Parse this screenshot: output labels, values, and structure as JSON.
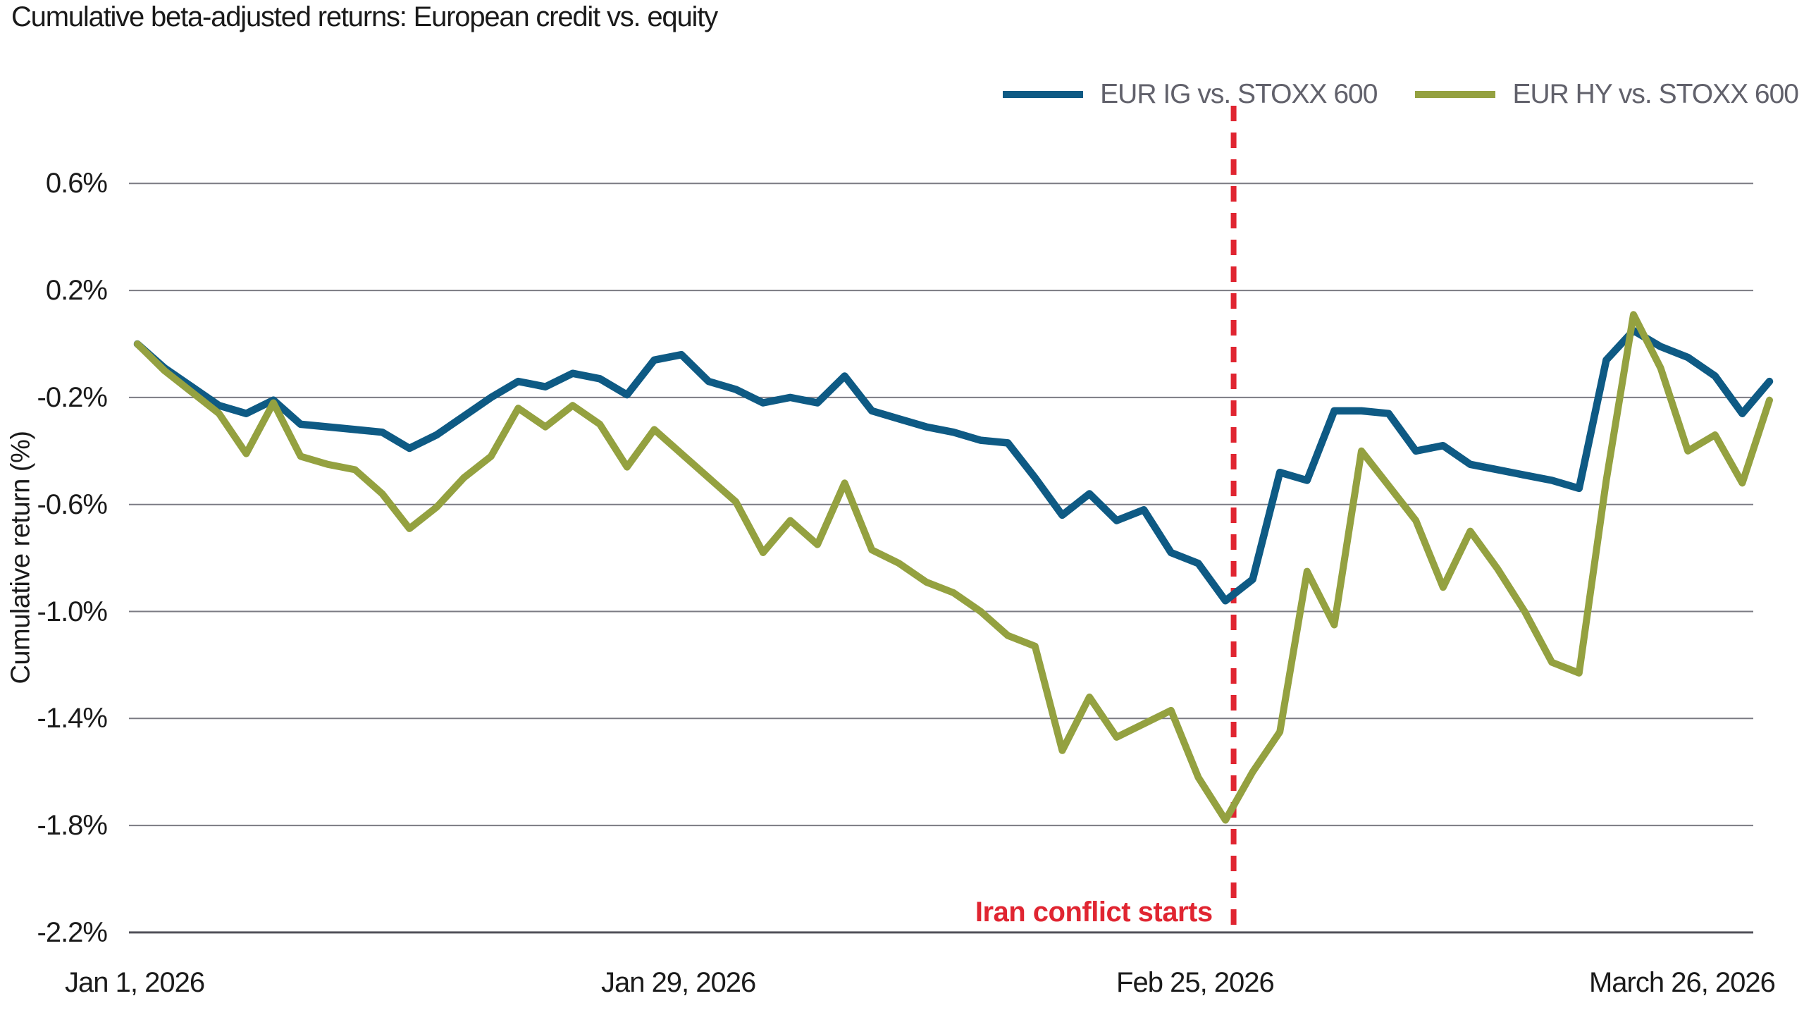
{
  "title": "Cumulative beta-adjusted returns: European credit vs. equity",
  "legend": {
    "items": [
      {
        "label": "EUR IG vs. STOXX 600",
        "color": "#0e5a84"
      },
      {
        "label": "EUR HY vs. STOXX 600",
        "color": "#94a140"
      }
    ]
  },
  "y_axis": {
    "label": "Cumulative return (%)",
    "ticks": [
      {
        "label": "0.6%",
        "value": 0.6,
        "emphasized": false
      },
      {
        "label": "0.2%",
        "value": 0.2,
        "emphasized": false
      },
      {
        "label": "-0.2%",
        "value": -0.2,
        "emphasized": false
      },
      {
        "label": "-0.6%",
        "value": -0.6,
        "emphasized": false
      },
      {
        "label": "-1.0%",
        "value": -1.0,
        "emphasized": false
      },
      {
        "label": "-1.4%",
        "value": -1.4,
        "emphasized": false
      },
      {
        "label": "-1.8%",
        "value": -1.8,
        "emphasized": false
      },
      {
        "label": "-2.2%",
        "value": -2.2,
        "emphasized": true
      }
    ]
  },
  "x_axis": {
    "ticks": [
      {
        "label": "Jan 1, 2026",
        "day": 0,
        "anchor": "center"
      },
      {
        "label": "Jan 29, 2026",
        "day": 20,
        "anchor": "center"
      },
      {
        "label": "Feb 25, 2026",
        "day": 39,
        "anchor": "center"
      },
      {
        "label": "March 26, 2026",
        "day": 60,
        "anchor": "right"
      }
    ]
  },
  "annotation": {
    "label": "Iran conflict starts",
    "color": "#e02531",
    "day_position": 40.3
  },
  "chart_data": {
    "type": "line",
    "title": "Cumulative beta-adjusted returns: European credit vs. equity",
    "ylabel": "Cumulative return (%)",
    "xlabel": "",
    "ylim": [
      -2.2,
      0.6
    ],
    "grid": "horizontal",
    "legend_position": "top-right",
    "x_unit": "business days, Jan 1 2026 to March 26 2026",
    "x_tick_labels": [
      "Jan 1, 2026",
      "Jan 29, 2026",
      "Feb 25, 2026",
      "March 26, 2026"
    ],
    "x_tick_days": [
      0,
      20,
      39,
      60
    ],
    "annotation": {
      "text": "Iran conflict starts",
      "type": "vertical-dashed-line",
      "at_day": 40,
      "color": "#e02531"
    },
    "series": [
      {
        "name": "EUR IG vs. STOXX 600",
        "color": "#0e5a84",
        "stroke_width": 10.5,
        "values": [
          0.0,
          -0.09,
          -0.16,
          -0.23,
          -0.26,
          -0.21,
          -0.3,
          -0.31,
          -0.32,
          -0.33,
          -0.39,
          -0.34,
          -0.27,
          -0.2,
          -0.14,
          -0.16,
          -0.11,
          -0.13,
          -0.19,
          -0.06,
          -0.04,
          -0.14,
          -0.17,
          -0.22,
          -0.2,
          -0.22,
          -0.12,
          -0.25,
          -0.28,
          -0.31,
          -0.33,
          -0.36,
          -0.37,
          -0.5,
          -0.64,
          -0.56,
          -0.66,
          -0.62,
          -0.78,
          -0.82,
          -0.96,
          -0.88,
          -0.48,
          -0.51,
          -0.25,
          -0.25,
          -0.26,
          -0.4,
          -0.38,
          -0.45,
          -0.47,
          -0.49,
          -0.51,
          -0.54,
          -0.06,
          0.05,
          -0.01,
          -0.05,
          -0.12,
          -0.26,
          -0.14
        ]
      },
      {
        "name": "EUR HY vs. STOXX 600",
        "color": "#94a140",
        "stroke_width": 10,
        "values": [
          0.0,
          -0.1,
          -0.18,
          -0.26,
          -0.41,
          -0.22,
          -0.42,
          -0.45,
          -0.47,
          -0.56,
          -0.69,
          -0.61,
          -0.5,
          -0.42,
          -0.24,
          -0.31,
          -0.23,
          -0.3,
          -0.46,
          -0.32,
          -0.41,
          -0.5,
          -0.59,
          -0.78,
          -0.66,
          -0.75,
          -0.52,
          -0.77,
          -0.82,
          -0.89,
          -0.93,
          -1.0,
          -1.09,
          -1.13,
          -1.52,
          -1.32,
          -1.47,
          -1.42,
          -1.37,
          -1.62,
          -1.78,
          -1.6,
          -1.45,
          -0.85,
          -1.05,
          -0.4,
          -0.53,
          -0.66,
          -0.91,
          -0.7,
          -0.84,
          -1.0,
          -1.19,
          -1.23,
          -0.51,
          0.11,
          -0.09,
          -0.4,
          -0.34,
          -0.52,
          -0.21
        ]
      }
    ]
  }
}
